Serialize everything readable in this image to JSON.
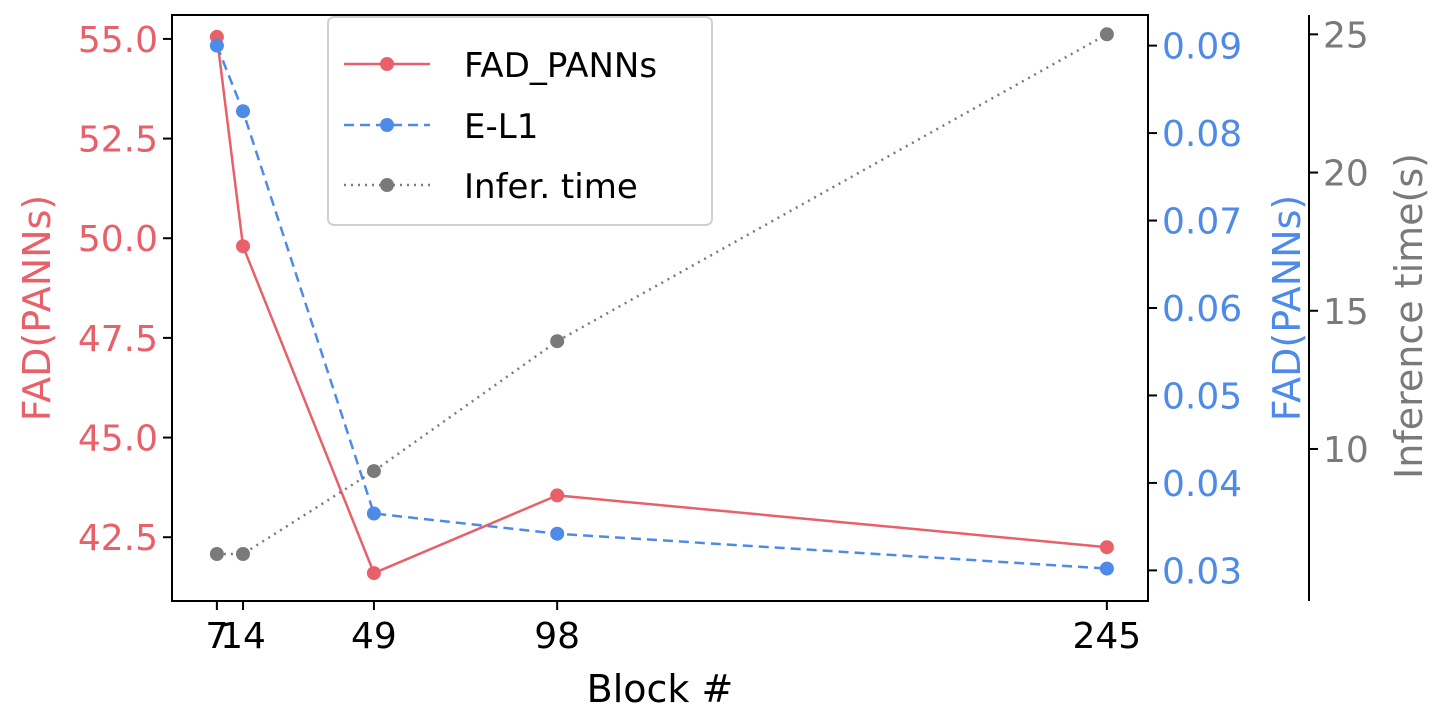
{
  "chart_data": {
    "type": "line",
    "xlabel": "Block #",
    "x": [
      7,
      14,
      49,
      98,
      245
    ],
    "x_tick_labels": [
      "7",
      "14",
      "49",
      "98",
      "245"
    ],
    "xlim": [
      -5,
      256
    ],
    "grid": false,
    "legend_position": "top-center",
    "axes": {
      "left": {
        "label": "FAD(PANNs)",
        "color": "#e8606a",
        "ylim": [
          40.9,
          55.6
        ],
        "ticks": [
          "42.5",
          "45.0",
          "47.5",
          "50.0",
          "52.5",
          "55.0"
        ]
      },
      "right": {
        "label": "FAD(PANNs)",
        "color": "#4e8ae8",
        "ylim": [
          0.0265,
          0.0935
        ],
        "ticks": [
          "0.03",
          "0.04",
          "0.05",
          "0.06",
          "0.07",
          "0.08",
          "0.09"
        ]
      },
      "right2": {
        "label": "Inference time(s)",
        "color": "#7a7a7a",
        "ylim": [
          4.5,
          25.7
        ],
        "ticks": [
          "10",
          "15",
          "20",
          "25"
        ]
      }
    },
    "series": [
      {
        "name": "FAD_PANNs",
        "axis": "left",
        "color": "#e8606a",
        "style": "solid",
        "values": [
          55.05,
          49.8,
          41.6,
          43.55,
          42.25
        ]
      },
      {
        "name": "E-L1",
        "axis": "right",
        "color": "#4e8ae8",
        "style": "dashed",
        "values": [
          0.09,
          0.0825,
          0.0365,
          0.0342,
          0.0302
        ]
      },
      {
        "name": "Infer. time",
        "axis": "right2",
        "color": "#7a7a7a",
        "style": "dotted",
        "values": [
          6.2,
          6.2,
          9.2,
          13.9,
          25.0
        ]
      }
    ]
  }
}
